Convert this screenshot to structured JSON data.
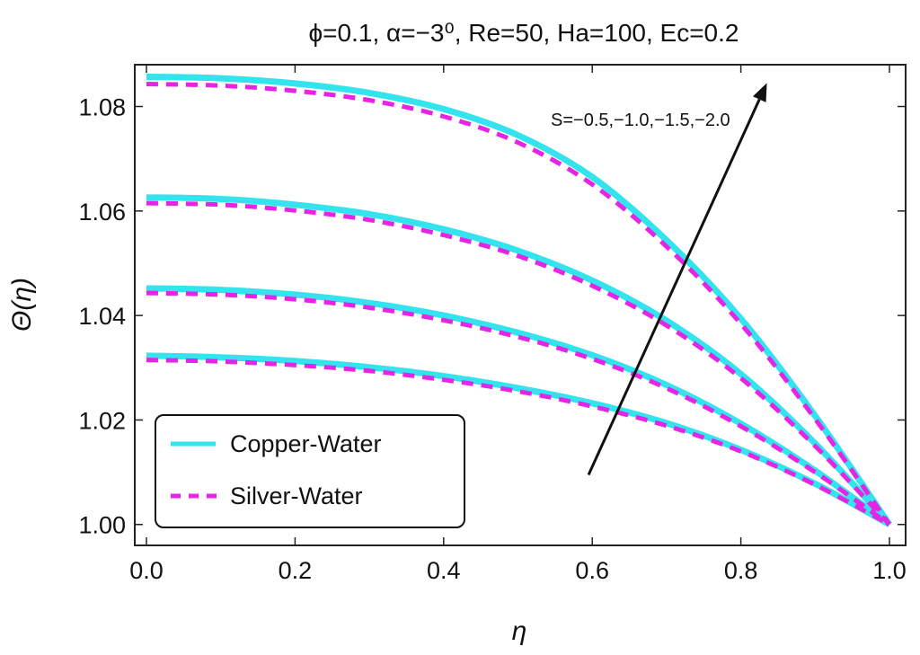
{
  "chart_data": {
    "type": "line",
    "title": "ϕ=0.1, α=−3⁰, Re=50, Ha=100, Ec=0.2",
    "xlabel": "η",
    "ylabel": "Θ(η)",
    "xlim": [
      0.0,
      1.0
    ],
    "ylim": [
      0.996,
      1.088
    ],
    "x_ticks": [
      "0.0",
      "0.2",
      "0.4",
      "0.6",
      "0.8",
      "1.0"
    ],
    "y_ticks": [
      "1.00",
      "1.02",
      "1.04",
      "1.06",
      "1.08"
    ],
    "x": [
      0.0,
      0.1,
      0.2,
      0.3,
      0.4,
      0.5,
      0.6,
      0.7,
      0.8,
      0.9,
      1.0
    ],
    "parameter_label": "S",
    "annotation": "S=−0.5,−1.0,−1.5,−2.0",
    "arrow": {
      "from": [
        0.595,
        1.0095
      ],
      "to": [
        0.835,
        1.0845
      ]
    },
    "legend": {
      "position": "bottom-left",
      "entries": [
        "Copper-Water",
        "Silver-Water"
      ]
    },
    "colors": {
      "copper": "#33e3ee",
      "silver": "#e524e5"
    },
    "series": [
      {
        "name": "Copper-Water",
        "S": "-0.5",
        "style": "solid",
        "values": [
          1.0323,
          1.032,
          1.0313,
          1.0301,
          1.0284,
          1.0261,
          1.0232,
          1.0194,
          1.0143,
          1.0078,
          1.0
        ]
      },
      {
        "name": "Silver-Water",
        "S": "-0.5",
        "style": "dashed",
        "values": [
          1.0315,
          1.0312,
          1.0305,
          1.0294,
          1.0277,
          1.0255,
          1.0226,
          1.0189,
          1.014,
          1.0076,
          1.0
        ]
      },
      {
        "name": "Copper-Water",
        "S": "-1.0",
        "style": "solid",
        "values": [
          1.0452,
          1.0449,
          1.044,
          1.0424,
          1.04,
          1.0367,
          1.0324,
          1.0267,
          1.0193,
          1.0103,
          1.0
        ]
      },
      {
        "name": "Silver-Water",
        "S": "-1.0",
        "style": "dashed",
        "values": [
          1.0443,
          1.044,
          1.0431,
          1.0415,
          1.0391,
          1.0359,
          1.0317,
          1.0261,
          1.0188,
          1.01,
          1.0
        ]
      },
      {
        "name": "Copper-Water",
        "S": "-1.5",
        "style": "solid",
        "values": [
          1.0626,
          1.0623,
          1.0612,
          1.0594,
          1.0565,
          1.0524,
          1.0467,
          1.039,
          1.0288,
          1.0155,
          1.0
        ]
      },
      {
        "name": "Silver-Water",
        "S": "-1.5",
        "style": "dashed",
        "values": [
          1.0615,
          1.0612,
          1.0601,
          1.0583,
          1.0554,
          1.0514,
          1.0457,
          1.0381,
          1.028,
          1.015,
          1.0
        ]
      },
      {
        "name": "Copper-Water",
        "S": "-2.0",
        "style": "solid",
        "values": [
          1.0857,
          1.0854,
          1.0844,
          1.0826,
          1.0795,
          1.0745,
          1.0665,
          1.0544,
          1.0394,
          1.0208,
          1.0
        ]
      },
      {
        "name": "Silver-Water",
        "S": "-2.0",
        "style": "dashed",
        "values": [
          1.0843,
          1.084,
          1.083,
          1.0812,
          1.0781,
          1.0731,
          1.0651,
          1.0532,
          1.0384,
          1.0202,
          1.0
        ]
      }
    ]
  }
}
